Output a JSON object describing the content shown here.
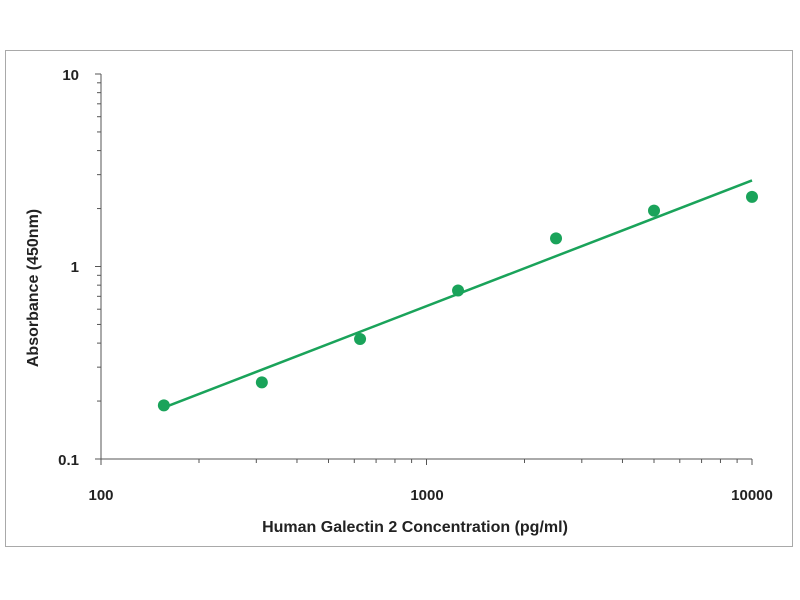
{
  "chart_data": {
    "type": "scatter",
    "xlabel": "Human Galectin 2 Concentration (pg/ml)",
    "ylabel": "Absorbance (450nm)",
    "x_scale": "log",
    "y_scale": "log",
    "xlim": [
      100,
      10000
    ],
    "ylim": [
      0.1,
      10
    ],
    "x_tick_labels": [
      "100",
      "1000",
      "10000"
    ],
    "y_tick_labels": [
      "10",
      "1",
      "0.1"
    ],
    "grid": false,
    "legend": "none",
    "series": [
      {
        "x": [
          156,
          312,
          625,
          1250,
          2500,
          5000,
          10000
        ],
        "y": [
          0.19,
          0.25,
          0.42,
          0.75,
          1.4,
          1.95,
          2.3
        ]
      }
    ],
    "trendline": {
      "type": "power",
      "x": [
        156,
        10000
      ],
      "y": [
        0.185,
        2.8
      ]
    },
    "colors": {
      "marker": "#1aa35a",
      "line": "#1aa35a"
    }
  }
}
